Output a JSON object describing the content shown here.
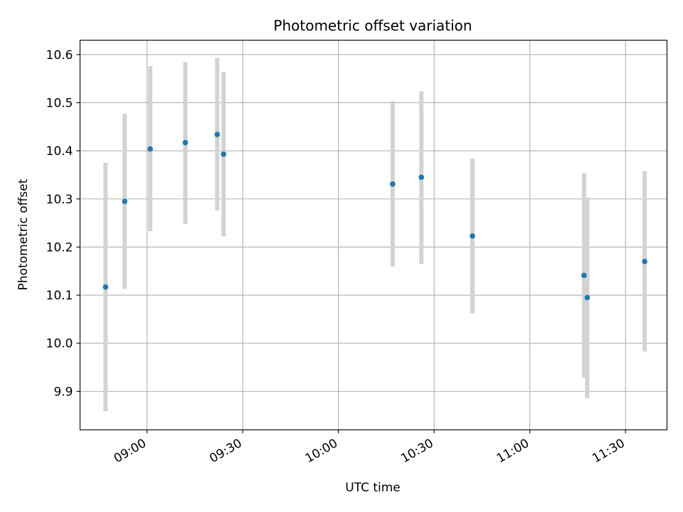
{
  "chart_data": {
    "type": "scatter",
    "title": "Photometric offset variation",
    "xlabel": "UTC time",
    "ylabel": "Photometric offset",
    "grid": true,
    "xlim": [
      "08:39",
      "11:43"
    ],
    "ylim": [
      9.82,
      10.63
    ],
    "x_ticks": [
      "09:00",
      "09:30",
      "10:00",
      "10:30",
      "11:00",
      "11:30"
    ],
    "y_ticks": [
      "9.9",
      "10.0",
      "10.1",
      "10.2",
      "10.3",
      "10.4",
      "10.5",
      "10.6"
    ],
    "colors": {
      "marker": "#1f77b4",
      "errorbar": "#d3d3d3",
      "grid": "#b0b0b0"
    },
    "series": [
      {
        "points": [
          {
            "x": "08:47",
            "y": 10.117,
            "ylow": 9.859,
            "yhigh": 10.375
          },
          {
            "x": "08:53",
            "y": 10.295,
            "ylow": 10.113,
            "yhigh": 10.477
          },
          {
            "x": "09:01",
            "y": 10.404,
            "ylow": 10.233,
            "yhigh": 10.576
          },
          {
            "x": "09:12",
            "y": 10.417,
            "ylow": 10.248,
            "yhigh": 10.585
          },
          {
            "x": "09:22",
            "y": 10.434,
            "ylow": 10.276,
            "yhigh": 10.593
          },
          {
            "x": "09:24",
            "y": 10.393,
            "ylow": 10.222,
            "yhigh": 10.564
          },
          {
            "x": "10:17",
            "y": 10.331,
            "ylow": 10.159,
            "yhigh": 10.503
          },
          {
            "x": "10:26",
            "y": 10.345,
            "ylow": 10.165,
            "yhigh": 10.524
          },
          {
            "x": "10:42",
            "y": 10.223,
            "ylow": 10.062,
            "yhigh": 10.384
          },
          {
            "x": "11:17",
            "y": 10.141,
            "ylow": 9.928,
            "yhigh": 10.354
          },
          {
            "x": "11:18",
            "y": 10.095,
            "ylow": 9.886,
            "yhigh": 10.303
          },
          {
            "x": "11:36",
            "y": 10.17,
            "ylow": 9.983,
            "yhigh": 10.358
          }
        ]
      }
    ]
  }
}
